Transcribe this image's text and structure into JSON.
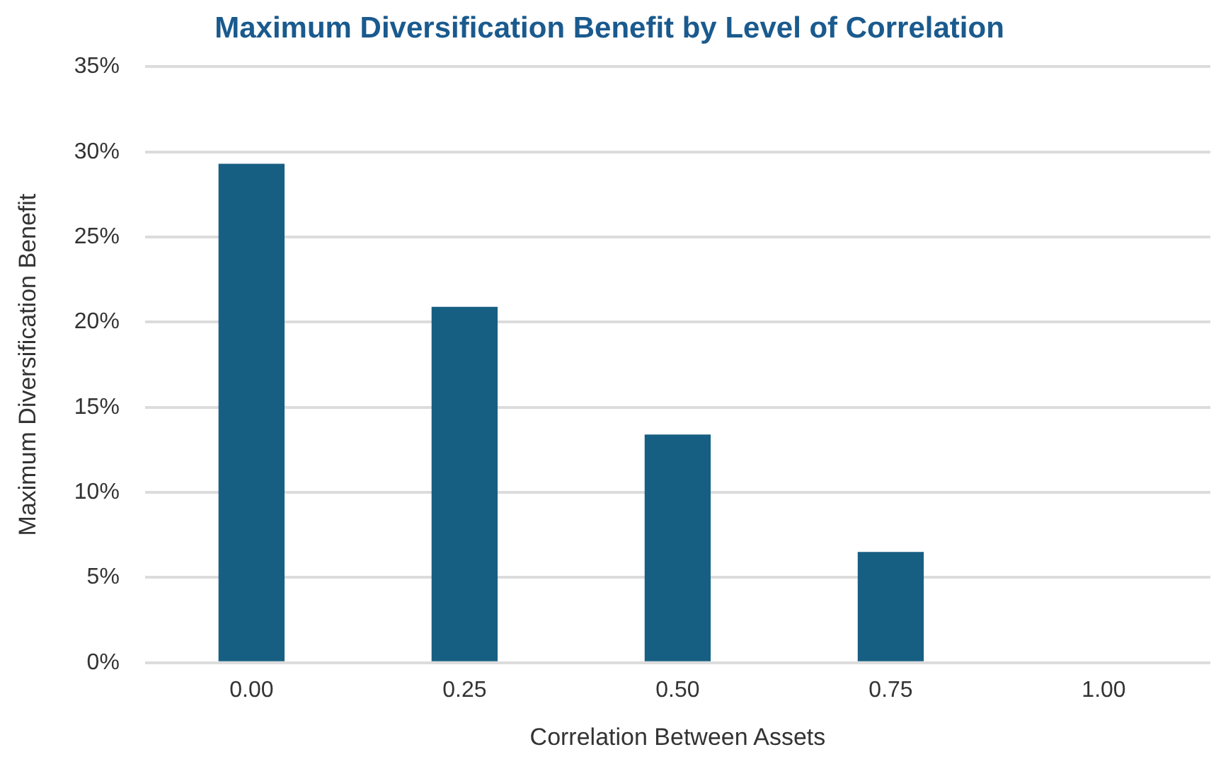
{
  "chart_data": {
    "type": "bar",
    "title": "Maximum Diversification Benefit by Level of Correlation",
    "xlabel": "Correlation Between Assets",
    "ylabel": "Maximum Diversification Benefit",
    "categories": [
      "0.00",
      "0.25",
      "0.50",
      "0.75",
      "1.00"
    ],
    "values": [
      29.3,
      20.9,
      13.4,
      6.5,
      0
    ],
    "color": "#175f82",
    "ylim": [
      0,
      35
    ],
    "yticks": [
      {
        "value": 0,
        "label": "0%"
      },
      {
        "value": 5,
        "label": "5%"
      },
      {
        "value": 10,
        "label": "10%"
      },
      {
        "value": 15,
        "label": "15%"
      },
      {
        "value": 20,
        "label": "20%"
      },
      {
        "value": 25,
        "label": "25%"
      },
      {
        "value": 30,
        "label": "30%"
      },
      {
        "value": 35,
        "label": "35%"
      }
    ],
    "grid": "y"
  }
}
